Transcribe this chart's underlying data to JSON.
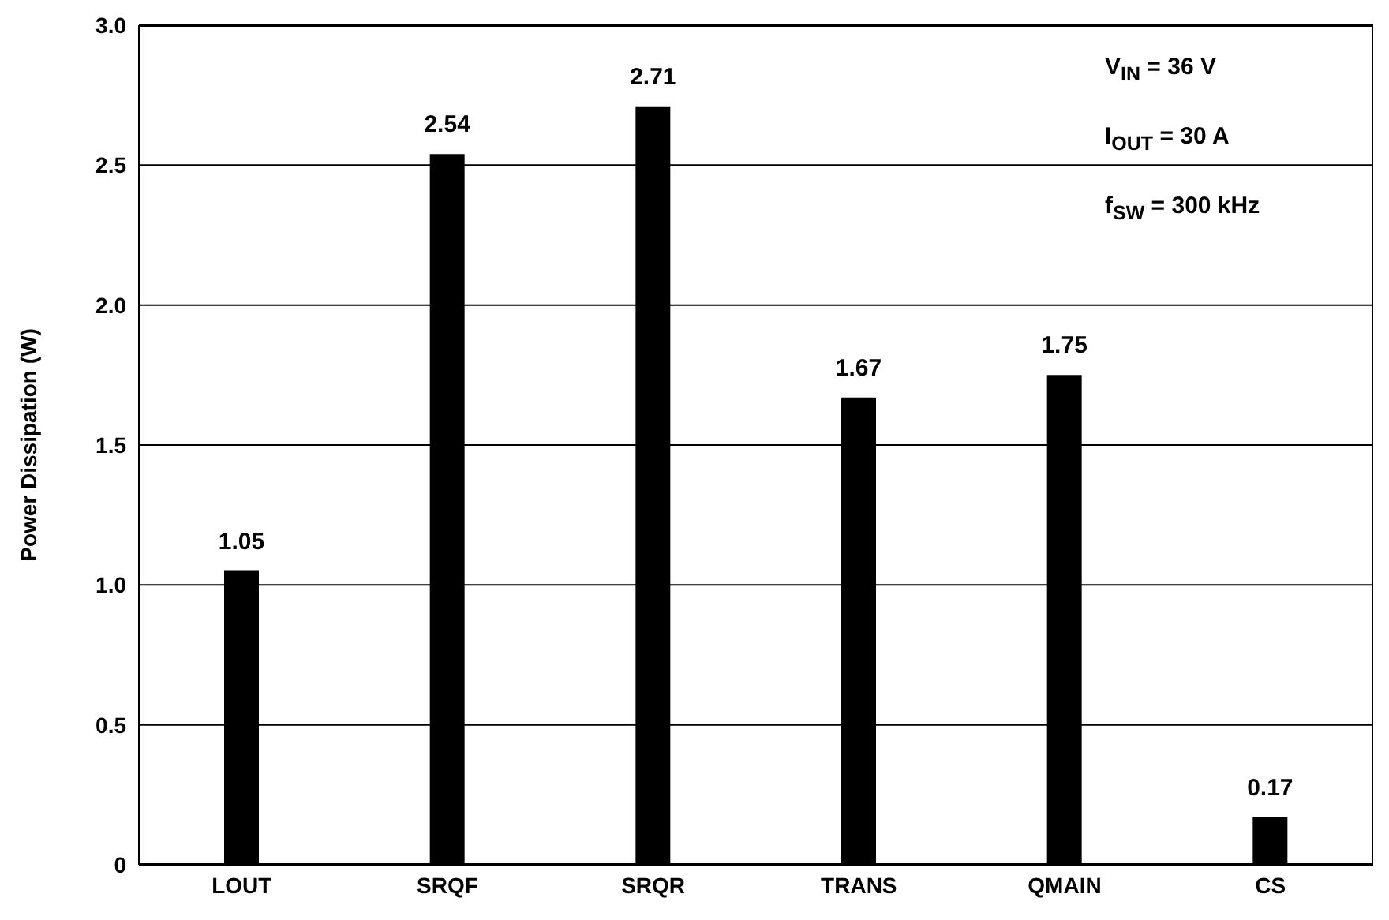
{
  "chart_data": {
    "type": "bar",
    "ylabel": "Power Dissipation (W)",
    "categories": [
      "LOUT",
      "SRQF",
      "SRQR",
      "TRANS",
      "QMAIN",
      "CS"
    ],
    "values": [
      1.05,
      2.54,
      2.71,
      1.67,
      1.75,
      0.17
    ],
    "color": "#000000",
    "ylim": [
      0,
      3
    ],
    "yticks": [
      {
        "value": 0,
        "label": "0"
      },
      {
        "value": 0.5,
        "label": "0.5"
      },
      {
        "value": 1,
        "label": "1.0"
      },
      {
        "value": 1.5,
        "label": "1.5"
      },
      {
        "value": 2,
        "label": "2.0"
      },
      {
        "value": 2.5,
        "label": "2.5"
      },
      {
        "value": 3,
        "label": "3.0"
      }
    ],
    "grid": "y",
    "data_labels": true,
    "annotations": [
      "V$_{IN}$ = 36 V",
      "I$_{OUT}$ = 30 A",
      "f$_{SW}$ = 300 kHz"
    ]
  }
}
